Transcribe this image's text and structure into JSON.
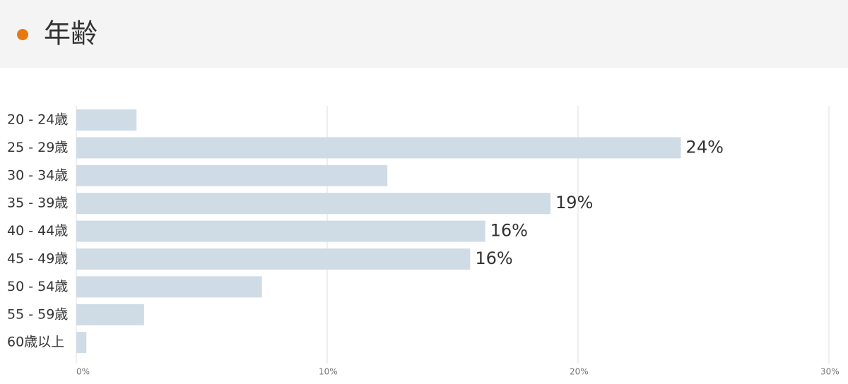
{
  "chart_data": {
    "type": "bar",
    "orientation": "horizontal",
    "title": "年齢",
    "title_marker_color": "#e8790f",
    "categories": [
      "20 - 24歳",
      "25 - 29歳",
      "30 - 34歳",
      "35 - 39歳",
      "40 - 44歳",
      "45 - 49歳",
      "50 - 54歳",
      "55 - 59歳",
      "60歳以上"
    ],
    "values": [
      2.4,
      24.1,
      12.4,
      18.9,
      16.3,
      15.7,
      7.4,
      2.7,
      0.4
    ],
    "value_labels": [
      null,
      "24%",
      null,
      "19%",
      "16%",
      "16%",
      null,
      null,
      null
    ],
    "color": "#cfdce6",
    "xlim": [
      0,
      30
    ],
    "xticks": [
      {
        "value": 0,
        "label": "0%"
      },
      {
        "value": 10,
        "label": "10%"
      },
      {
        "value": 20,
        "label": "20%"
      },
      {
        "value": 30,
        "label": "30%"
      }
    ],
    "grid": true
  }
}
